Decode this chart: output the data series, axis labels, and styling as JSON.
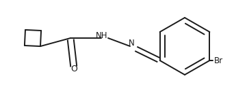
{
  "bg_color": "#ffffff",
  "line_color": "#1a1a1a",
  "line_width": 1.4,
  "font_size": 8.5,
  "atoms": {
    "O_label": "O",
    "NH_label": "NH",
    "N_label": "N",
    "Br_label": "Br"
  },
  "figsize": [
    3.42,
    1.28
  ],
  "dpi": 100
}
